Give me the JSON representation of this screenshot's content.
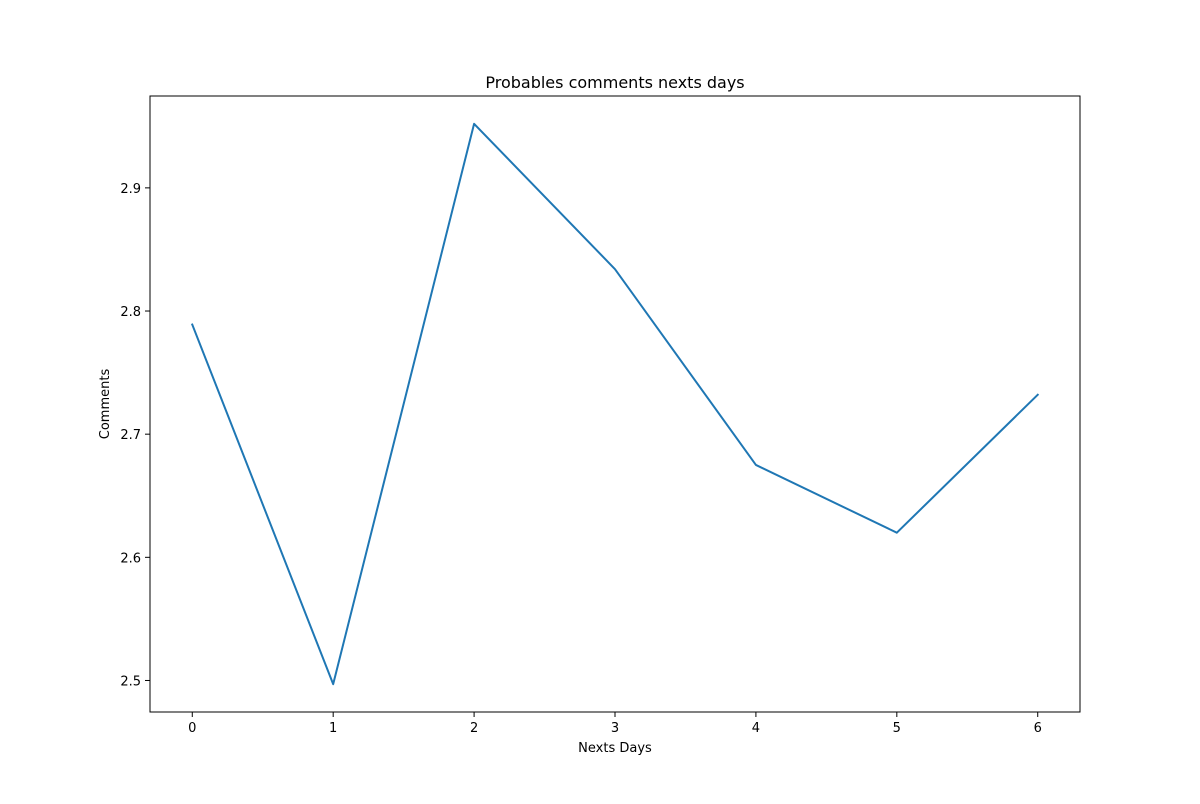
{
  "chart_data": {
    "type": "line",
    "title": "Probables comments nexts days",
    "xlabel": "Nexts Days",
    "ylabel": "Comments",
    "x": [
      0,
      1,
      2,
      3,
      4,
      5,
      6
    ],
    "series": [
      {
        "values": [
          2.789,
          2.497,
          2.952,
          2.834,
          2.675,
          2.62,
          2.732
        ],
        "color": "#1f77b4"
      }
    ],
    "xlim": [
      -0.3,
      6.3
    ],
    "ylim": [
      2.4744,
      2.9746
    ],
    "xticks": [
      "0",
      "1",
      "2",
      "3",
      "4",
      "5",
      "6"
    ],
    "yticks": [
      "2.5",
      "2.6",
      "2.7",
      "2.8",
      "2.9"
    ],
    "grid": false,
    "legend": "none"
  }
}
